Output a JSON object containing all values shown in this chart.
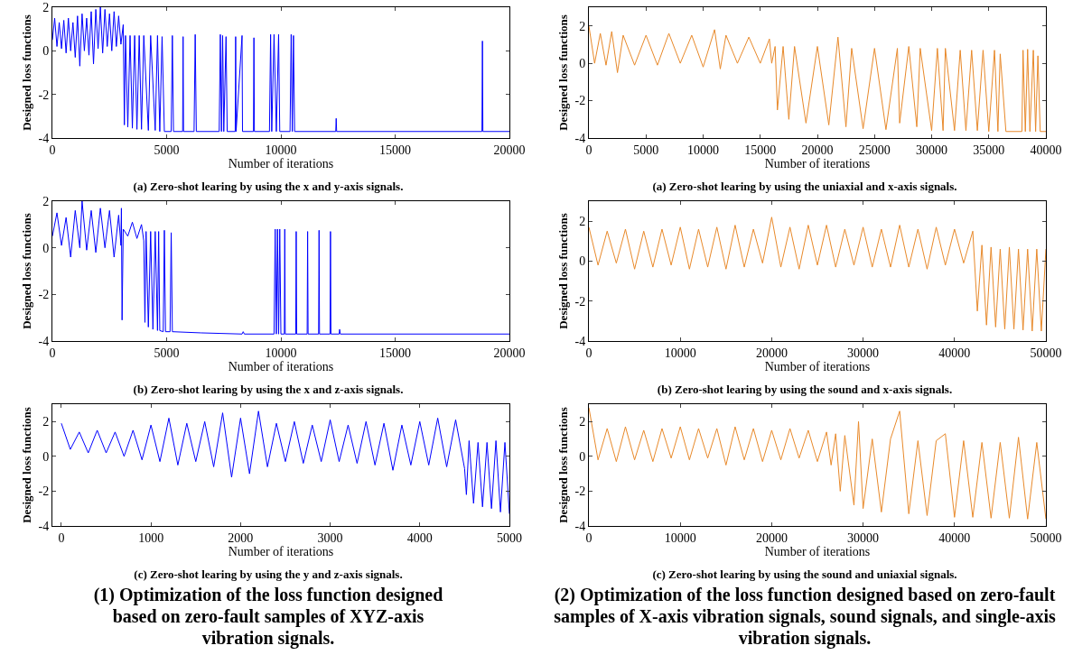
{
  "chart_data": [
    {
      "type": "line",
      "title": "(a) Zero-shot learing by using the x and y-axis signals.",
      "xlabel": "Number of iterations",
      "ylabel": "Designed loss functions",
      "xlim": [
        0,
        20000
      ],
      "ylim": [
        -4,
        2
      ],
      "xticks": [
        0,
        5000,
        10000,
        15000,
        20000
      ],
      "yticks": [
        -4,
        -2,
        0,
        2
      ],
      "series": [
        {
          "color": "#0000ff",
          "x": [
            0,
            100,
            200,
            300,
            400,
            500,
            600,
            700,
            800,
            900,
            1000,
            1100,
            1200,
            1300,
            1400,
            1500,
            1600,
            1700,
            1800,
            1900,
            2000,
            2100,
            2200,
            2300,
            2400,
            2500,
            2600,
            2700,
            2800,
            2900,
            3000,
            3100,
            3150,
            3200,
            3300,
            3400,
            3500,
            3600,
            3700,
            3800,
            3900,
            4000,
            4200,
            4300,
            4500,
            4600,
            4700,
            4800,
            4900,
            5200,
            5250,
            5300,
            5700,
            5720,
            5740,
            6200,
            6250,
            6300,
            7300,
            7350,
            7400,
            7450,
            7500,
            7600,
            7650,
            8000,
            8020,
            8040,
            8300,
            8320,
            8800,
            8820,
            8840,
            9500,
            9550,
            9600,
            9700,
            9800,
            9900,
            9950,
            10400,
            10450,
            10500,
            10550,
            10600,
            12400,
            12420,
            12440,
            18800,
            18820,
            18840,
            20000
          ],
          "values": [
            0.5,
            1.5,
            0.2,
            1.3,
            0.1,
            1.4,
            -0.1,
            1.5,
            0.0,
            1.3,
            -0.3,
            1.6,
            -0.7,
            1.7,
            0.0,
            1.5,
            -0.2,
            1.8,
            -0.6,
            1.9,
            0.1,
            2.0,
            -0.1,
            1.9,
            0.2,
            1.7,
            0.0,
            1.8,
            0.2,
            1.6,
            0.3,
            1.2,
            -3.4,
            0.7,
            -3.5,
            0.7,
            -3.55,
            0.7,
            -3.6,
            0.7,
            -3.6,
            0.7,
            -3.65,
            0.7,
            -3.65,
            0.7,
            -3.7,
            0.65,
            -3.7,
            -3.7,
            0.7,
            -3.7,
            -3.7,
            0.65,
            -3.7,
            -3.7,
            0.75,
            -3.7,
            -3.7,
            0.75,
            -3.7,
            0.7,
            -3.7,
            0.65,
            -3.7,
            -3.7,
            0.65,
            -3.7,
            0.7,
            -3.7,
            -3.7,
            0.6,
            -3.7,
            -3.7,
            0.75,
            -3.7,
            0.75,
            -3.7,
            0.75,
            -3.7,
            -3.7,
            0.75,
            -3.7,
            0.7,
            -3.7,
            -3.7,
            -3.1,
            -3.7,
            -3.7,
            0.45,
            -3.7,
            -3.7
          ]
        }
      ]
    },
    {
      "type": "line",
      "title": "(a) Zero-shot learing by using the uniaxial and x-axis signals.",
      "xlabel": "Number of iterations",
      "ylabel": "Designed loss functions",
      "xlim": [
        0,
        40000
      ],
      "ylim": [
        -4,
        3
      ],
      "xticks": [
        0,
        5000,
        10000,
        15000,
        20000,
        25000,
        30000,
        35000,
        40000
      ],
      "yticks": [
        -4,
        -2,
        0,
        2
      ],
      "series": [
        {
          "color": "#e8892a",
          "x": [
            0,
            500,
            1000,
            1500,
            2000,
            2500,
            3000,
            4000,
            5000,
            6000,
            7000,
            8000,
            9000,
            10000,
            11000,
            11500,
            12000,
            13000,
            14000,
            15000,
            15800,
            16000,
            16300,
            16500,
            17000,
            17500,
            18000,
            19000,
            20000,
            21000,
            21800,
            22500,
            23000,
            24000,
            25000,
            26000,
            27000,
            27200,
            28000,
            28700,
            29000,
            30000,
            30500,
            31000,
            31200,
            32000,
            32500,
            33000,
            33500,
            34000,
            34500,
            35000,
            35500,
            35800,
            36000,
            36500,
            37900,
            38000,
            38200,
            38400,
            38600,
            38900,
            39100,
            39300,
            39500,
            40000
          ],
          "values": [
            2.0,
            0.0,
            1.6,
            -0.1,
            1.7,
            -0.5,
            1.5,
            -0.1,
            1.5,
            -0.1,
            1.6,
            0.0,
            1.5,
            -0.2,
            1.8,
            -0.3,
            1.5,
            0.0,
            1.4,
            0.0,
            1.3,
            0.0,
            0.9,
            -2.5,
            0.9,
            -3.0,
            0.9,
            -3.2,
            0.9,
            -3.3,
            1.4,
            -3.4,
            0.8,
            -3.5,
            0.8,
            -3.55,
            0.8,
            -3.2,
            0.9,
            -3.4,
            0.8,
            -3.6,
            0.8,
            -3.6,
            0.8,
            -3.6,
            0.7,
            -3.6,
            0.7,
            -3.6,
            0.7,
            -3.65,
            0.7,
            -3.65,
            0.5,
            -3.65,
            -3.65,
            0.7,
            -3.65,
            0.75,
            -3.65,
            0.7,
            -3.65,
            0.4,
            -3.65,
            -3.65
          ]
        }
      ]
    },
    {
      "type": "line",
      "title": "(b) Zero-shot learing by using the x and z-axis signals.",
      "xlabel": "Number of iterations",
      "ylabel": "Designed loss functions",
      "xlim": [
        0,
        20000
      ],
      "ylim": [
        -4,
        2
      ],
      "xticks": [
        0,
        5000,
        10000,
        15000,
        20000
      ],
      "yticks": [
        -4,
        -2,
        0,
        2
      ],
      "series": [
        {
          "color": "#0000ff",
          "x": [
            0,
            200,
            400,
            600,
            800,
            1000,
            1200,
            1300,
            1500,
            1700,
            1900,
            2100,
            2300,
            2500,
            2700,
            2900,
            3000,
            3020,
            3050,
            3100,
            3300,
            3500,
            3700,
            3900,
            4000,
            4050,
            4100,
            4200,
            4300,
            4400,
            4500,
            4600,
            4650,
            4700,
            4850,
            4900,
            4950,
            5150,
            5200,
            5250,
            6500,
            8300,
            8350,
            8400,
            9700,
            9750,
            9800,
            9850,
            9900,
            9950,
            10000,
            10150,
            10170,
            10190,
            10650,
            10670,
            10690,
            11150,
            11170,
            11190,
            11650,
            11670,
            11690,
            12150,
            12170,
            12190,
            12550,
            12570,
            12600,
            20000
          ],
          "values": [
            0.5,
            1.5,
            0.1,
            1.3,
            -0.4,
            1.6,
            0.0,
            2.0,
            -0.1,
            1.6,
            -0.2,
            1.7,
            0.0,
            1.6,
            -0.4,
            1.4,
            0.1,
            1.7,
            -3.1,
            0.8,
            0.5,
            1.1,
            0.4,
            1.0,
            0.3,
            -3.2,
            0.7,
            -3.4,
            0.7,
            -3.5,
            0.7,
            -3.55,
            0.7,
            -3.55,
            -3.6,
            0.75,
            -3.6,
            -3.6,
            0.65,
            -3.6,
            -3.65,
            -3.7,
            -3.6,
            -3.7,
            -3.7,
            0.8,
            -3.7,
            0.8,
            -3.7,
            0.8,
            -3.7,
            -3.7,
            0.8,
            -3.7,
            -3.7,
            0.7,
            -3.7,
            -3.7,
            0.7,
            -3.7,
            -3.7,
            0.75,
            -3.7,
            -3.7,
            0.7,
            -3.7,
            -3.7,
            -3.5,
            -3.7,
            -3.7
          ]
        }
      ]
    },
    {
      "type": "line",
      "title": "(b) Zero-shot learing by using the sound and x-axis signals.",
      "xlabel": "Number of iterations",
      "ylabel": "Designed loss functions",
      "xlim": [
        0,
        50000
      ],
      "ylim": [
        -4,
        3
      ],
      "xticks": [
        0,
        10000,
        20000,
        30000,
        40000,
        50000
      ],
      "yticks": [
        -4,
        -2,
        0,
        2
      ],
      "series": [
        {
          "color": "#e8892a",
          "x": [
            0,
            1000,
            2000,
            3000,
            4000,
            5000,
            6000,
            7000,
            8000,
            9000,
            10000,
            11000,
            12000,
            13000,
            14000,
            15000,
            16000,
            17000,
            18000,
            19000,
            20000,
            21000,
            22000,
            23000,
            24000,
            25000,
            26000,
            27000,
            28000,
            29000,
            30000,
            31000,
            32000,
            33000,
            34000,
            35000,
            36000,
            37000,
            38000,
            39000,
            40000,
            41000,
            42000,
            42500,
            43000,
            43500,
            44000,
            44500,
            45000,
            45500,
            46000,
            46500,
            47000,
            47500,
            48000,
            48500,
            49000,
            49500,
            50000
          ],
          "values": [
            1.7,
            -0.2,
            1.5,
            -0.1,
            1.6,
            -0.4,
            1.5,
            -0.3,
            1.6,
            -0.2,
            1.7,
            -0.4,
            1.6,
            -0.3,
            1.7,
            -0.4,
            1.8,
            -0.3,
            1.6,
            -0.1,
            2.2,
            -0.3,
            1.7,
            -0.4,
            1.8,
            -0.2,
            1.8,
            -0.3,
            1.6,
            -0.2,
            1.7,
            -0.3,
            1.6,
            -0.3,
            1.8,
            -0.3,
            1.6,
            -0.4,
            1.7,
            -0.2,
            1.6,
            -0.1,
            1.5,
            -2.5,
            0.8,
            -3.2,
            0.7,
            -3.3,
            0.6,
            -3.4,
            0.7,
            -3.4,
            0.6,
            -3.45,
            0.6,
            -3.5,
            0.6,
            -3.5,
            0.6
          ]
        }
      ]
    },
    {
      "type": "line",
      "title": "(c) Zero-shot learing by using the y and z-axis signals.",
      "xlabel": "Number of iterations",
      "ylabel": "Designed loss functions",
      "xlim": [
        -100,
        5000
      ],
      "ylim": [
        -4,
        3
      ],
      "xticks": [
        0,
        1000,
        2000,
        3000,
        4000,
        5000
      ],
      "yticks": [
        -4,
        -2,
        0,
        2
      ],
      "annotations": [
        "(1) Optimization of the loss function designed based on zero-fault samples of XYZ-axis vibration signals."
      ],
      "series": [
        {
          "color": "#0000ff",
          "x": [
            0,
            100,
            200,
            300,
            400,
            500,
            600,
            700,
            800,
            900,
            1000,
            1100,
            1200,
            1300,
            1400,
            1500,
            1600,
            1700,
            1800,
            1900,
            2000,
            2100,
            2200,
            2300,
            2400,
            2500,
            2600,
            2700,
            2800,
            2900,
            3000,
            3100,
            3200,
            3300,
            3400,
            3500,
            3600,
            3700,
            3800,
            3900,
            4000,
            4100,
            4200,
            4300,
            4400,
            4500,
            4520,
            4550,
            4600,
            4650,
            4700,
            4750,
            4800,
            4850,
            4900,
            4950,
            5000
          ],
          "values": [
            1.9,
            0.4,
            1.4,
            0.2,
            1.5,
            0.2,
            1.4,
            0.0,
            1.5,
            -0.2,
            1.8,
            -0.3,
            2.2,
            -0.5,
            1.9,
            -0.3,
            2.0,
            -0.6,
            2.5,
            -1.2,
            2.2,
            -1.0,
            2.6,
            -0.6,
            1.9,
            -0.3,
            2.0,
            -0.4,
            1.8,
            -0.3,
            2.1,
            -0.3,
            1.8,
            -0.4,
            2.0,
            -0.5,
            1.9,
            -0.8,
            1.8,
            -0.5,
            2.0,
            -0.5,
            2.2,
            -0.6,
            2.1,
            -0.7,
            -2.2,
            0.9,
            -2.7,
            0.8,
            -2.9,
            0.8,
            -3.0,
            0.9,
            -3.2,
            0.8,
            -3.3
          ]
        }
      ]
    },
    {
      "type": "line",
      "title": "(c) Zero-shot learing by using the sound and uniaxial signals.",
      "xlabel": "Number of iterations",
      "ylabel": "Designed loss functions",
      "xlim": [
        0,
        50000
      ],
      "ylim": [
        -4,
        3
      ],
      "xticks": [
        0,
        10000,
        20000,
        30000,
        40000,
        50000
      ],
      "yticks": [
        -4,
        -2,
        0,
        2
      ],
      "annotations": [
        "(2) Optimization of the loss function designed based on zero-fault samples of X-axis vibration signals, sound signals, and single-axis vibration signals."
      ],
      "series": [
        {
          "color": "#e8892a",
          "x": [
            0,
            1000,
            2000,
            3000,
            4000,
            5000,
            6000,
            7000,
            8000,
            9000,
            10000,
            11000,
            12000,
            13000,
            14000,
            15000,
            16000,
            17000,
            18000,
            19000,
            20000,
            21000,
            22000,
            23000,
            24000,
            25000,
            26000,
            26500,
            27000,
            27500,
            28000,
            29000,
            29500,
            30000,
            31000,
            32000,
            33000,
            34000,
            35000,
            36000,
            37000,
            38000,
            39000,
            40000,
            41000,
            42000,
            43000,
            44000,
            45000,
            46000,
            47000,
            48000,
            49000,
            50000
          ],
          "values": [
            2.8,
            -0.2,
            1.6,
            -0.3,
            1.7,
            -0.2,
            1.5,
            -0.3,
            1.6,
            -0.1,
            1.7,
            -0.2,
            1.6,
            -0.1,
            1.6,
            -0.5,
            1.7,
            -0.2,
            1.6,
            -0.3,
            1.5,
            -0.2,
            1.6,
            -0.1,
            1.5,
            -0.3,
            1.4,
            -0.5,
            1.3,
            -2.0,
            1.2,
            -2.8,
            2.0,
            -3.0,
            1.0,
            -3.2,
            1.0,
            2.6,
            -3.3,
            0.9,
            -3.4,
            0.9,
            1.3,
            -3.5,
            0.9,
            -3.5,
            0.8,
            -3.55,
            0.8,
            -3.55,
            1.1,
            -3.6,
            0.8,
            -3.6
          ]
        }
      ]
    }
  ]
}
